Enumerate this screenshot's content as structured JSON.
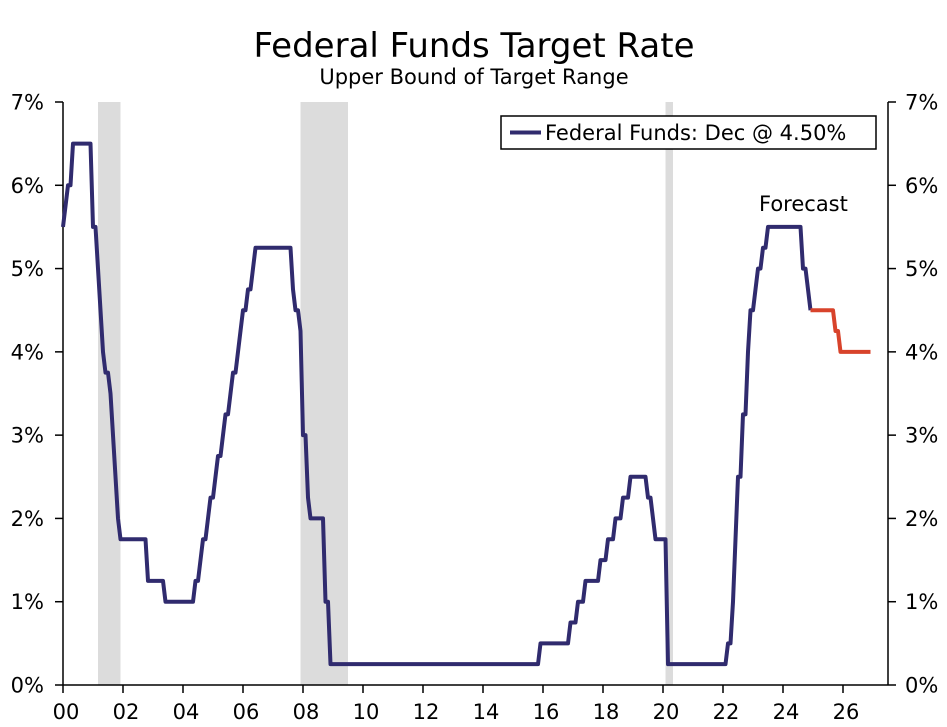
{
  "chart_data": {
    "type": "line",
    "title": "Federal Funds Target Rate",
    "subtitle": "Upper Bound of Target Range",
    "xlabel": "",
    "ylabel": "",
    "xlim": [
      "2000-01",
      "2027-07"
    ],
    "ylim": [
      0,
      7
    ],
    "grid": false,
    "legend": {
      "position": "top-right"
    },
    "x_ticks": [
      {
        "value": "2000-01",
        "label": "00"
      },
      {
        "value": "2002-01",
        "label": "02"
      },
      {
        "value": "2004-01",
        "label": "04"
      },
      {
        "value": "2006-01",
        "label": "06"
      },
      {
        "value": "2008-01",
        "label": "08"
      },
      {
        "value": "2010-01",
        "label": "10"
      },
      {
        "value": "2012-01",
        "label": "12"
      },
      {
        "value": "2014-01",
        "label": "14"
      },
      {
        "value": "2016-01",
        "label": "16"
      },
      {
        "value": "2018-01",
        "label": "18"
      },
      {
        "value": "2020-01",
        "label": "20"
      },
      {
        "value": "2022-01",
        "label": "22"
      },
      {
        "value": "2024-01",
        "label": "24"
      },
      {
        "value": "2026-01",
        "label": "26"
      }
    ],
    "y_ticks": [
      {
        "value": 0,
        "label": "0%"
      },
      {
        "value": 1,
        "label": "1%"
      },
      {
        "value": 2,
        "label": "2%"
      },
      {
        "value": 3,
        "label": "3%"
      },
      {
        "value": 4,
        "label": "4%"
      },
      {
        "value": 5,
        "label": "5%"
      },
      {
        "value": 6,
        "label": "6%"
      },
      {
        "value": 7,
        "label": "7%"
      }
    ],
    "shaded_periods": [
      [
        "2001-03",
        "2001-11"
      ],
      [
        "2007-12",
        "2009-06"
      ],
      [
        "2020-02",
        "2020-04"
      ]
    ],
    "shading_color": "#dcdcdc",
    "series": [
      {
        "name": "Federal Funds: Dec @ 4.50%",
        "color": "#302b6e",
        "points": [
          [
            "2000-01",
            5.5
          ],
          [
            "2000-02",
            5.75
          ],
          [
            "2000-03",
            6.0
          ],
          [
            "2000-04",
            6.0
          ],
          [
            "2000-05",
            6.5
          ],
          [
            "2000-12",
            6.5
          ],
          [
            "2001-01",
            5.5
          ],
          [
            "2001-02",
            5.5
          ],
          [
            "2001-03",
            5.0
          ],
          [
            "2001-04",
            4.5
          ],
          [
            "2001-05",
            4.0
          ],
          [
            "2001-06",
            3.75
          ],
          [
            "2001-07",
            3.75
          ],
          [
            "2001-08",
            3.5
          ],
          [
            "2001-09",
            3.0
          ],
          [
            "2001-10",
            2.5
          ],
          [
            "2001-11",
            2.0
          ],
          [
            "2001-12",
            1.75
          ],
          [
            "2002-10",
            1.75
          ],
          [
            "2002-11",
            1.25
          ],
          [
            "2003-05",
            1.25
          ],
          [
            "2003-06",
            1.0
          ],
          [
            "2004-05",
            1.0
          ],
          [
            "2004-06",
            1.25
          ],
          [
            "2004-07",
            1.25
          ],
          [
            "2004-08",
            1.5
          ],
          [
            "2004-09",
            1.75
          ],
          [
            "2004-10",
            1.75
          ],
          [
            "2004-11",
            2.0
          ],
          [
            "2004-12",
            2.25
          ],
          [
            "2005-01",
            2.25
          ],
          [
            "2005-02",
            2.5
          ],
          [
            "2005-03",
            2.75
          ],
          [
            "2005-04",
            2.75
          ],
          [
            "2005-05",
            3.0
          ],
          [
            "2005-06",
            3.25
          ],
          [
            "2005-07",
            3.25
          ],
          [
            "2005-08",
            3.5
          ],
          [
            "2005-09",
            3.75
          ],
          [
            "2005-10",
            3.75
          ],
          [
            "2005-11",
            4.0
          ],
          [
            "2005-12",
            4.25
          ],
          [
            "2006-01",
            4.5
          ],
          [
            "2006-02",
            4.5
          ],
          [
            "2006-03",
            4.75
          ],
          [
            "2006-04",
            4.75
          ],
          [
            "2006-05",
            5.0
          ],
          [
            "2006-06",
            5.25
          ],
          [
            "2007-08",
            5.25
          ],
          [
            "2007-09",
            4.75
          ],
          [
            "2007-10",
            4.5
          ],
          [
            "2007-11",
            4.5
          ],
          [
            "2007-12",
            4.25
          ],
          [
            "2008-01",
            3.0
          ],
          [
            "2008-02",
            3.0
          ],
          [
            "2008-03",
            2.25
          ],
          [
            "2008-04",
            2.0
          ],
          [
            "2008-09",
            2.0
          ],
          [
            "2008-10",
            1.0
          ],
          [
            "2008-11",
            1.0
          ],
          [
            "2008-12",
            0.25
          ],
          [
            "2015-11",
            0.25
          ],
          [
            "2015-12",
            0.5
          ],
          [
            "2016-11",
            0.5
          ],
          [
            "2016-12",
            0.75
          ],
          [
            "2017-02",
            0.75
          ],
          [
            "2017-03",
            1.0
          ],
          [
            "2017-05",
            1.0
          ],
          [
            "2017-06",
            1.25
          ],
          [
            "2017-11",
            1.25
          ],
          [
            "2017-12",
            1.5
          ],
          [
            "2018-02",
            1.5
          ],
          [
            "2018-03",
            1.75
          ],
          [
            "2018-05",
            1.75
          ],
          [
            "2018-06",
            2.0
          ],
          [
            "2018-08",
            2.0
          ],
          [
            "2018-09",
            2.25
          ],
          [
            "2018-11",
            2.25
          ],
          [
            "2018-12",
            2.5
          ],
          [
            "2019-06",
            2.5
          ],
          [
            "2019-07",
            2.25
          ],
          [
            "2019-08",
            2.25
          ],
          [
            "2019-09",
            2.0
          ],
          [
            "2019-10",
            1.75
          ],
          [
            "2020-02",
            1.75
          ],
          [
            "2020-03",
            0.25
          ],
          [
            "2022-02",
            0.25
          ],
          [
            "2022-03",
            0.5
          ],
          [
            "2022-04",
            0.5
          ],
          [
            "2022-05",
            1.0
          ],
          [
            "2022-06",
            1.75
          ],
          [
            "2022-07",
            2.5
          ],
          [
            "2022-08",
            2.5
          ],
          [
            "2022-09",
            3.25
          ],
          [
            "2022-10",
            3.25
          ],
          [
            "2022-11",
            4.0
          ],
          [
            "2022-12",
            4.5
          ],
          [
            "2023-01",
            4.5
          ],
          [
            "2023-02",
            4.75
          ],
          [
            "2023-03",
            5.0
          ],
          [
            "2023-04",
            5.0
          ],
          [
            "2023-05",
            5.25
          ],
          [
            "2023-06",
            5.25
          ],
          [
            "2023-07",
            5.5
          ],
          [
            "2024-08",
            5.5
          ],
          [
            "2024-09",
            5.0
          ],
          [
            "2024-10",
            5.0
          ],
          [
            "2024-11",
            4.75
          ],
          [
            "2024-12",
            4.5
          ]
        ]
      },
      {
        "name": "Forecast",
        "color": "#d8432b",
        "points": [
          [
            "2024-12",
            4.5
          ],
          [
            "2025-09",
            4.5
          ],
          [
            "2025-10",
            4.25
          ],
          [
            "2025-11",
            4.25
          ],
          [
            "2025-12",
            4.0
          ],
          [
            "2026-12",
            4.0
          ]
        ]
      }
    ]
  }
}
